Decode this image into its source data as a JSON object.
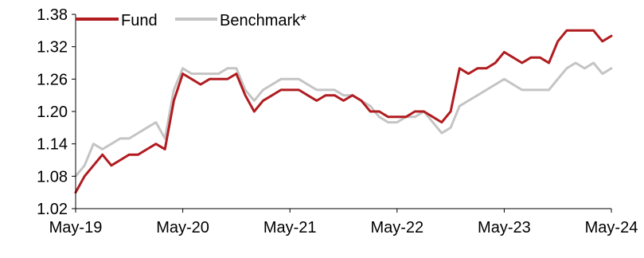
{
  "chart_data": {
    "type": "line",
    "title": "",
    "xlabel": "",
    "ylabel": "",
    "x_tick_labels": [
      "May-19",
      "May-20",
      "May-21",
      "May-22",
      "May-23",
      "May-24"
    ],
    "x_range": [
      "2019-05",
      "2024-05"
    ],
    "y_ticks": [
      "1.02",
      "1.08",
      "1.14",
      "1.20",
      "1.26",
      "1.32",
      "1.38"
    ],
    "ylim": [
      1.02,
      1.38
    ],
    "grid": false,
    "legend_position": "top-left",
    "series": [
      {
        "name": "Fund",
        "color": "#B01C20",
        "x": [
          "2019-05",
          "2019-06",
          "2019-07",
          "2019-08",
          "2019-09",
          "2019-10",
          "2019-11",
          "2019-12",
          "2020-01",
          "2020-02",
          "2020-03",
          "2020-04",
          "2020-05",
          "2020-06",
          "2020-07",
          "2020-08",
          "2020-09",
          "2020-10",
          "2020-11",
          "2020-12",
          "2021-01",
          "2021-02",
          "2021-03",
          "2021-04",
          "2021-05",
          "2021-06",
          "2021-07",
          "2021-08",
          "2021-09",
          "2021-10",
          "2021-11",
          "2021-12",
          "2022-01",
          "2022-02",
          "2022-03",
          "2022-04",
          "2022-05",
          "2022-06",
          "2022-07",
          "2022-08",
          "2022-09",
          "2022-10",
          "2022-11",
          "2022-12",
          "2023-01",
          "2023-02",
          "2023-03",
          "2023-04",
          "2023-05",
          "2023-06",
          "2023-07",
          "2023-08",
          "2023-09",
          "2023-10",
          "2023-11",
          "2023-12",
          "2024-01",
          "2024-02",
          "2024-03",
          "2024-04",
          "2024-05"
        ],
        "values": [
          1.05,
          1.08,
          1.1,
          1.12,
          1.1,
          1.11,
          1.12,
          1.12,
          1.13,
          1.14,
          1.13,
          1.22,
          1.27,
          1.26,
          1.25,
          1.26,
          1.26,
          1.26,
          1.27,
          1.23,
          1.2,
          1.22,
          1.23,
          1.24,
          1.24,
          1.24,
          1.23,
          1.22,
          1.23,
          1.23,
          1.22,
          1.23,
          1.22,
          1.2,
          1.2,
          1.19,
          1.19,
          1.19,
          1.2,
          1.2,
          1.19,
          1.18,
          1.2,
          1.28,
          1.27,
          1.28,
          1.28,
          1.29,
          1.31,
          1.3,
          1.29,
          1.3,
          1.3,
          1.29,
          1.33,
          1.35,
          1.35,
          1.35,
          1.35,
          1.33,
          1.34
        ]
      },
      {
        "name": "Benchmark*",
        "color": "#C4C4C4",
        "x": [
          "2019-05",
          "2019-06",
          "2019-07",
          "2019-08",
          "2019-09",
          "2019-10",
          "2019-11",
          "2019-12",
          "2020-01",
          "2020-02",
          "2020-03",
          "2020-04",
          "2020-05",
          "2020-06",
          "2020-07",
          "2020-08",
          "2020-09",
          "2020-10",
          "2020-11",
          "2020-12",
          "2021-01",
          "2021-02",
          "2021-03",
          "2021-04",
          "2021-05",
          "2021-06",
          "2021-07",
          "2021-08",
          "2021-09",
          "2021-10",
          "2021-11",
          "2021-12",
          "2022-01",
          "2022-02",
          "2022-03",
          "2022-04",
          "2022-05",
          "2022-06",
          "2022-07",
          "2022-08",
          "2022-09",
          "2022-10",
          "2022-11",
          "2022-12",
          "2023-01",
          "2023-02",
          "2023-03",
          "2023-04",
          "2023-05",
          "2023-06",
          "2023-07",
          "2023-08",
          "2023-09",
          "2023-10",
          "2023-11",
          "2023-12",
          "2024-01",
          "2024-02",
          "2024-03",
          "2024-04",
          "2024-05"
        ],
        "values": [
          1.08,
          1.1,
          1.14,
          1.13,
          1.14,
          1.15,
          1.15,
          1.16,
          1.17,
          1.18,
          1.15,
          1.24,
          1.28,
          1.27,
          1.27,
          1.27,
          1.27,
          1.28,
          1.28,
          1.24,
          1.22,
          1.24,
          1.25,
          1.26,
          1.26,
          1.26,
          1.25,
          1.24,
          1.24,
          1.24,
          1.23,
          1.23,
          1.22,
          1.21,
          1.19,
          1.18,
          1.18,
          1.19,
          1.19,
          1.2,
          1.18,
          1.16,
          1.17,
          1.21,
          1.22,
          1.23,
          1.24,
          1.25,
          1.26,
          1.25,
          1.24,
          1.24,
          1.24,
          1.24,
          1.26,
          1.28,
          1.29,
          1.28,
          1.29,
          1.27,
          1.28
        ]
      }
    ]
  }
}
